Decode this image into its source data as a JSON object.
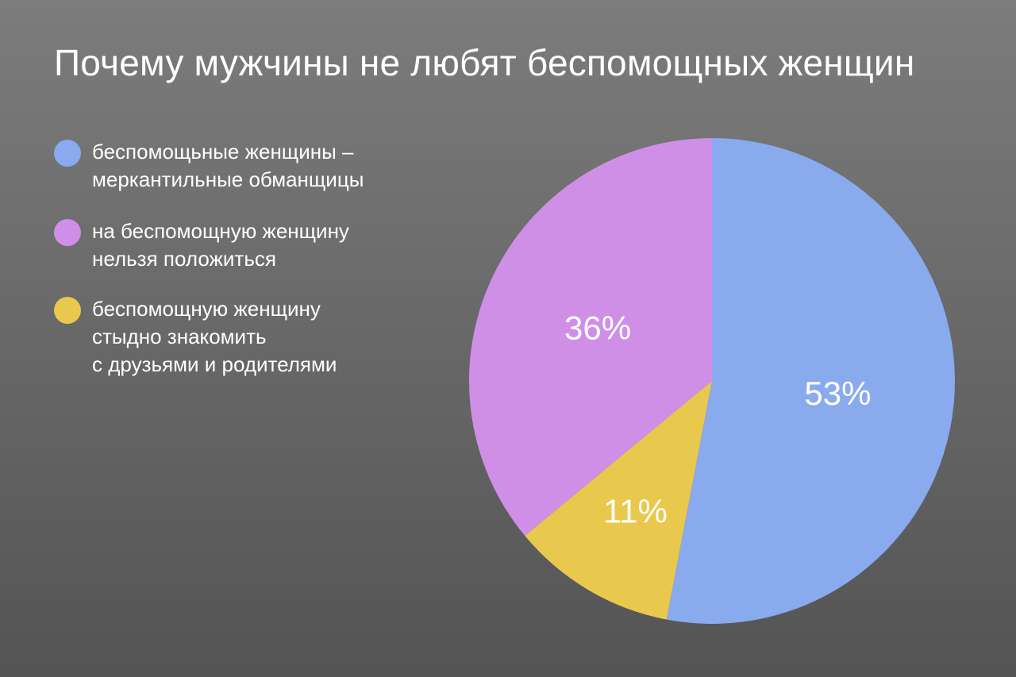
{
  "chart_data": {
    "type": "pie",
    "title": "Почему мужчины не любят беспомощных женщин",
    "slices": [
      {
        "name": "беспомощьные женщины –\nмеркантильные обманщицы",
        "value": 53,
        "label": "53%",
        "color": "#8aaaee"
      },
      {
        "name": "беспомощную женщину\nстыдно знакомить\nс друзьями и родителями",
        "value": 11,
        "label": "11%",
        "color": "#e9c84e"
      },
      {
        "name": "на беспомощную женщину\nнельзя положиться",
        "value": 36,
        "label": "36%",
        "color": "#d08fe6"
      }
    ],
    "legend": {
      "placement": "left",
      "order": [
        0,
        2,
        1
      ]
    }
  }
}
